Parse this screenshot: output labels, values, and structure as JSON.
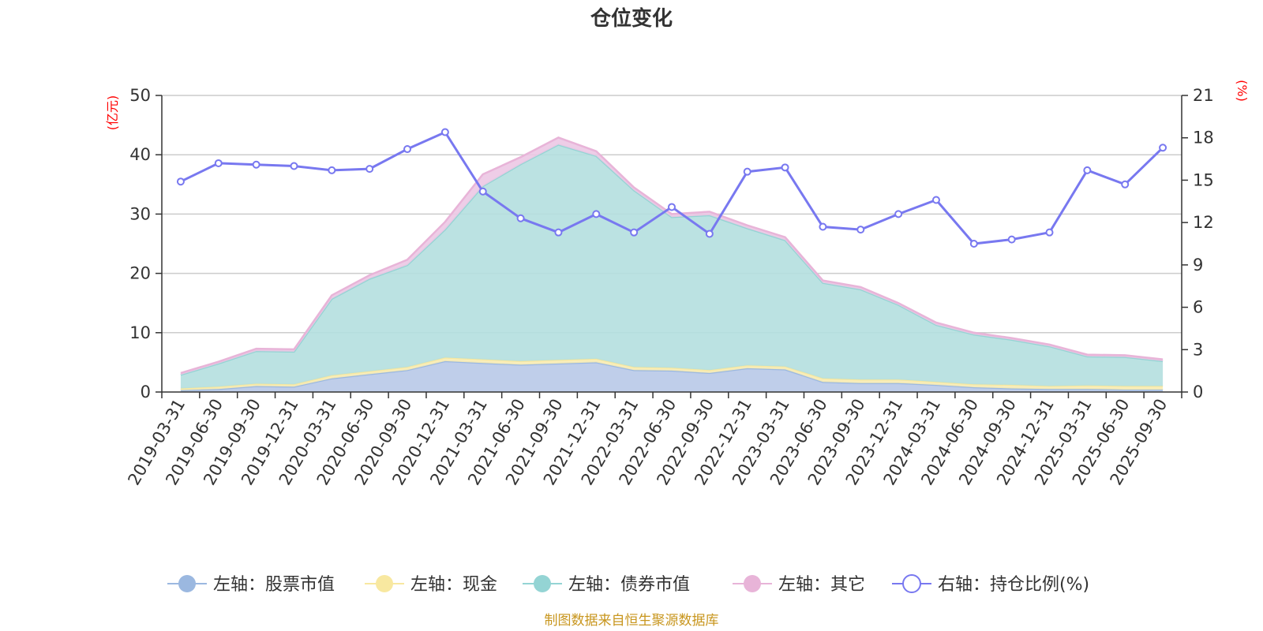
{
  "chart_data": {
    "type": "area",
    "title": "仓位变化",
    "categories": [
      "2019-03-31",
      "2019-06-30",
      "2019-09-30",
      "2019-12-31",
      "2020-03-31",
      "2020-06-30",
      "2020-09-30",
      "2020-12-31",
      "2021-03-31",
      "2021-06-30",
      "2021-09-30",
      "2021-12-31",
      "2022-03-31",
      "2022-06-30",
      "2022-09-30",
      "2022-12-31",
      "2023-03-31",
      "2023-06-30",
      "2023-09-30",
      "2023-12-31",
      "2024-03-31",
      "2024-06-30",
      "2024-09-30",
      "2024-12-31",
      "2025-03-31",
      "2025-06-30",
      "2025-09-30"
    ],
    "left_axis": {
      "unit": "(亿元)",
      "ylim": [
        0,
        50
      ],
      "ticks": [
        "0",
        "10",
        "20",
        "30",
        "40",
        "50"
      ]
    },
    "right_axis": {
      "unit": "(%)",
      "ylim": [
        0,
        21
      ],
      "ticks": [
        "0",
        "3",
        "6",
        "9",
        "12",
        "15",
        "18",
        "21"
      ]
    },
    "grid": true,
    "legend_position": "bottom",
    "series": [
      {
        "name": "左轴：股票市值",
        "axis": "left",
        "stacked": true,
        "color": "#9bb8e0",
        "fill": "#b8c9e8",
        "values": [
          0.3,
          0.5,
          1.0,
          0.9,
          2.3,
          3.0,
          3.7,
          5.2,
          4.9,
          4.6,
          4.8,
          5.0,
          3.7,
          3.6,
          3.2,
          4.0,
          3.8,
          1.7,
          1.5,
          1.5,
          1.2,
          0.8,
          0.6,
          0.5,
          0.5,
          0.4,
          0.4
        ]
      },
      {
        "name": "左轴：现金",
        "axis": "left",
        "stacked": true,
        "color": "#f8e8a0",
        "fill": "#f8ecb4",
        "values": [
          0.3,
          0.4,
          0.4,
          0.4,
          0.5,
          0.5,
          0.5,
          0.6,
          0.6,
          0.6,
          0.6,
          0.6,
          0.5,
          0.5,
          0.5,
          0.5,
          0.5,
          0.6,
          0.6,
          0.6,
          0.5,
          0.5,
          0.6,
          0.5,
          0.6,
          0.6,
          0.6
        ]
      },
      {
        "name": "左轴：债券市值",
        "axis": "left",
        "stacked": true,
        "color": "#94d4d4",
        "fill": "#b4dfdf",
        "values": [
          2.3,
          3.9,
          5.5,
          5.5,
          12.9,
          15.6,
          17.2,
          21.6,
          29.2,
          33.2,
          36.3,
          34.2,
          29.8,
          25.4,
          26.1,
          23.1,
          21.3,
          16.1,
          15.2,
          12.6,
          9.6,
          8.4,
          7.6,
          6.7,
          4.9,
          4.9,
          4.2
        ]
      },
      {
        "name": "左轴：其它",
        "axis": "left",
        "stacked": true,
        "color": "#e8b4d8",
        "fill": "#ecc8e4",
        "values": [
          0.3,
          0.3,
          0.4,
          0.4,
          0.6,
          0.6,
          0.9,
          1.3,
          2.0,
          1.2,
          1.2,
          0.8,
          0.5,
          0.5,
          0.6,
          0.5,
          0.5,
          0.4,
          0.4,
          0.3,
          0.4,
          0.3,
          0.3,
          0.3,
          0.3,
          0.3,
          0.3
        ]
      },
      {
        "name": "右轴：持仓比例(%)",
        "axis": "right",
        "stacked": false,
        "color": "#7878f0",
        "fill": "#ffffff",
        "values": [
          14.9,
          16.2,
          16.1,
          16.0,
          15.7,
          15.8,
          17.2,
          18.4,
          14.2,
          12.3,
          11.3,
          12.6,
          11.3,
          13.1,
          11.2,
          15.6,
          15.9,
          11.7,
          11.5,
          12.6,
          13.6,
          10.5,
          10.8,
          11.3,
          15.7,
          14.7,
          17.3
        ]
      }
    ],
    "source": "制图数据来自恒生聚源数据库"
  }
}
